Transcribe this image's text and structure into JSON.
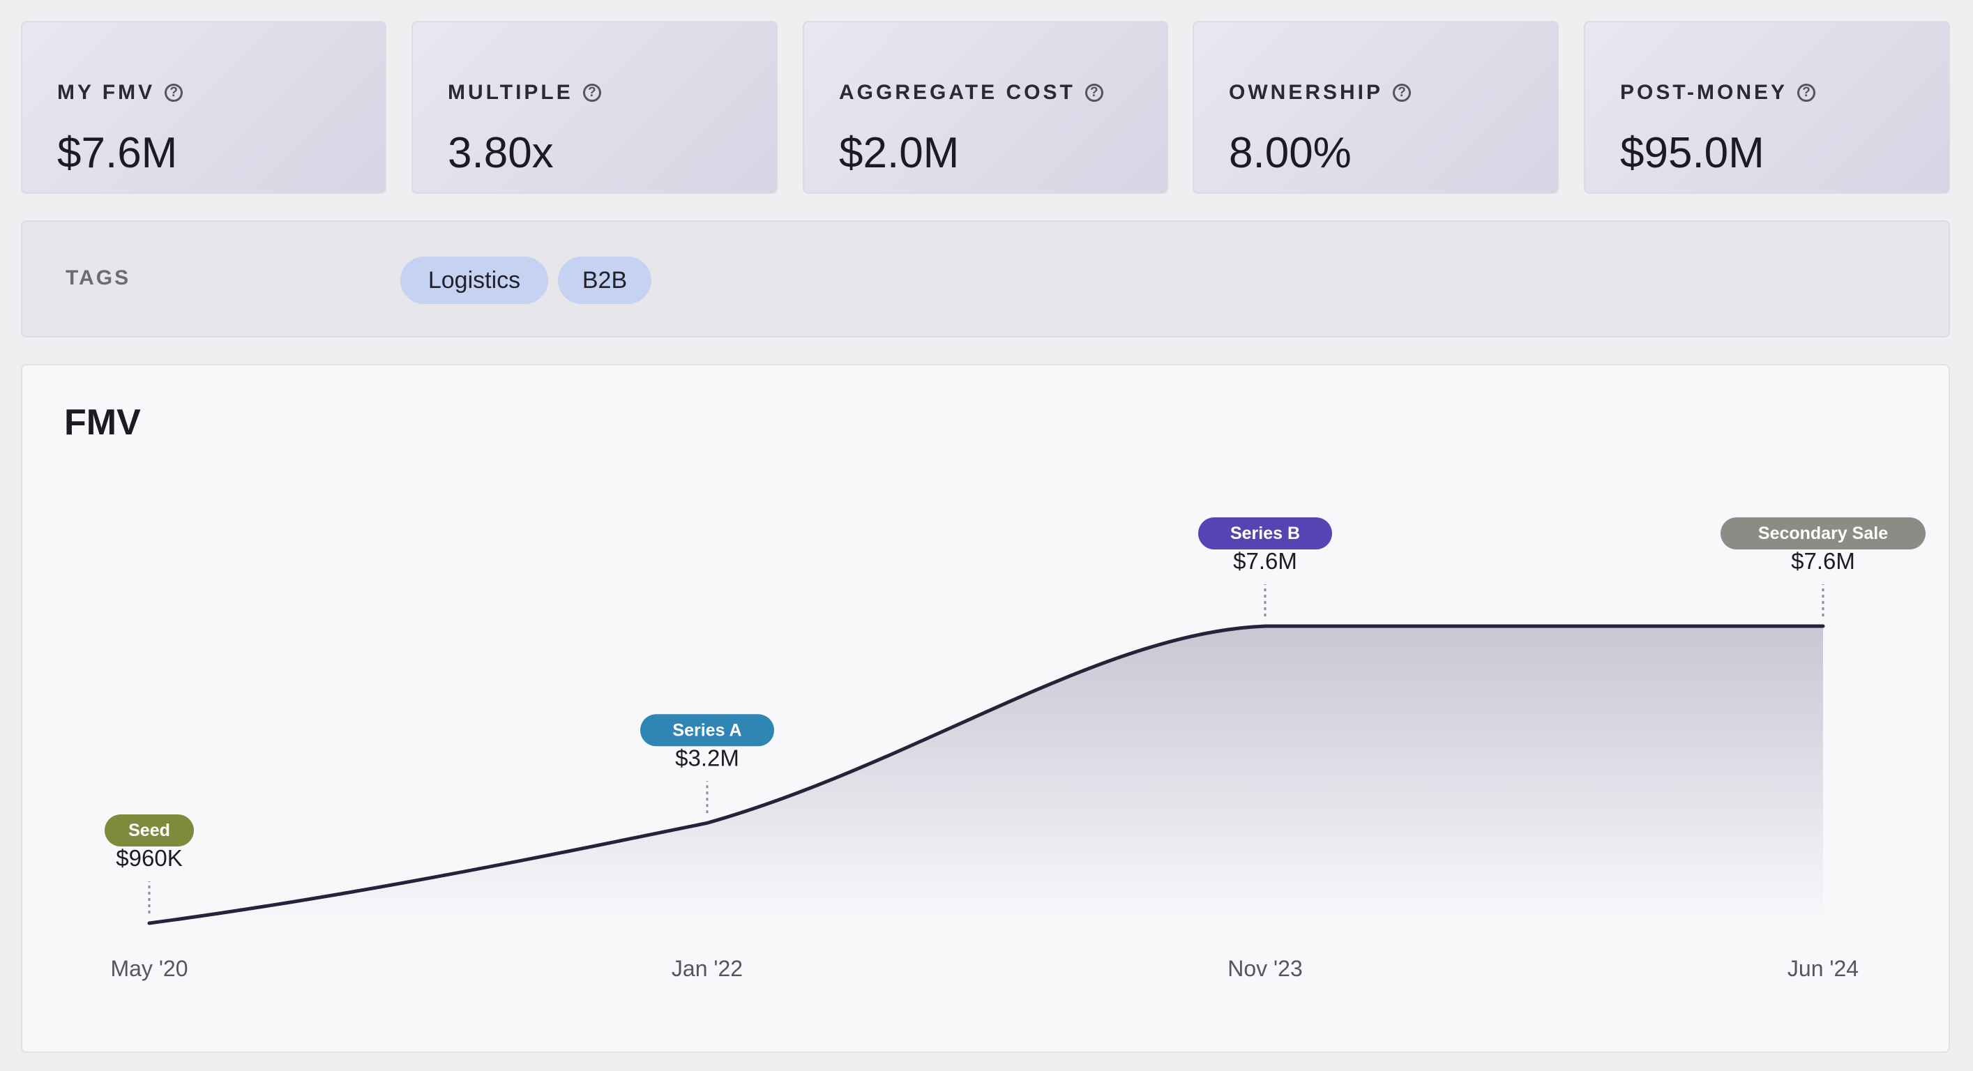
{
  "metrics": [
    {
      "label": "MY FMV",
      "value": "$7.6M"
    },
    {
      "label": "MULTIPLE",
      "value": "3.80x"
    },
    {
      "label": "AGGREGATE COST",
      "value": "$2.0M"
    },
    {
      "label": "OWNERSHIP",
      "value": "8.00%"
    },
    {
      "label": "POST-MONEY",
      "value": "$95.0M"
    }
  ],
  "help_glyph": "?",
  "tags": {
    "label": "TAGS",
    "items": [
      "Logistics",
      "B2B"
    ]
  },
  "fmv": {
    "title": "FMV"
  },
  "colors": {
    "seed": "#7d8c3c",
    "series_a": "#2f86b5",
    "series_b": "#5843b3",
    "secondary": "#8c8b86",
    "line": "#25233a",
    "tag_bg": "#c6d2f1"
  },
  "chart_data": {
    "type": "area",
    "title": "FMV",
    "x": [
      "May '20",
      "Jan '22",
      "Nov '23",
      "Jun '24"
    ],
    "values": [
      0.96,
      3.2,
      7.6,
      7.6
    ],
    "unit": "$M",
    "events": [
      {
        "x": "May '20",
        "label": "Seed",
        "value_label": "$960K",
        "color": "#7d8c3c"
      },
      {
        "x": "Jan '22",
        "label": "Series A",
        "value_label": "$3.2M",
        "color": "#2f86b5"
      },
      {
        "x": "Nov '23",
        "label": "Series B",
        "value_label": "$7.6M",
        "color": "#5843b3"
      },
      {
        "x": "Jun '24",
        "label": "Secondary Sale",
        "value_label": "$7.6M",
        "color": "#8c8b86"
      }
    ],
    "grid": false,
    "legend": "none"
  }
}
